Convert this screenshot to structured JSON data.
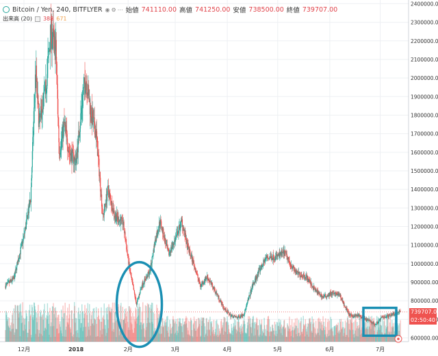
{
  "header": {
    "symbol": "Bitcoin / Yen, 240, BITFLYER",
    "open_label": "始値",
    "open_value": "741110.00",
    "high_label": "高値",
    "high_value": "741250.00",
    "low_label": "安値",
    "low_value": "738500.00",
    "close_label": "終値",
    "close_value": "739707.00"
  },
  "volume_legend": {
    "label": "出来高 (20)",
    "value1": "388",
    "value2": "671"
  },
  "price_tags": {
    "current": "739707.00",
    "countdown": "02:50:40"
  },
  "colors": {
    "up": "#26a69a",
    "down": "#ef5350",
    "annotation": "#1a8fb3",
    "current_price_line": "#ef5350",
    "grid": "#eef0f3"
  },
  "chart_data": {
    "type": "candlestick",
    "title": "Bitcoin / Yen, 240, BITFLYER",
    "y_unit": "JPY",
    "ylim": [
      580000,
      2420000
    ],
    "y_ticks": [
      "600000.00",
      "700000.00",
      "800000.00",
      "900000.00",
      "1000000.00",
      "1100000.00",
      "1200000.00",
      "1300000.00",
      "1400000.00",
      "1500000.00",
      "1600000.00",
      "1700000.00",
      "1800000.00",
      "1900000.00",
      "2000000.00",
      "2100000.00",
      "2200000.00",
      "2300000.00",
      "2400000.00"
    ],
    "x_ticks": [
      "12月",
      "2018",
      "2月",
      "3月",
      "4月",
      "5月",
      "6月",
      "7月"
    ],
    "x_tick_dates": [
      "2017-12-01",
      "2018-01-01",
      "2018-02-01",
      "2018-03-01",
      "2018-04-01",
      "2018-05-01",
      "2018-06-01",
      "2018-07-01"
    ],
    "x_range": [
      "2017-11-20",
      "2018-07-13"
    ],
    "grid": true,
    "price_path": [
      [
        "2017-11-20",
        880000
      ],
      [
        "2017-11-25",
        920000
      ],
      [
        "2017-12-01",
        1150000
      ],
      [
        "2017-12-05",
        1350000
      ],
      [
        "2017-12-08",
        2050000
      ],
      [
        "2017-12-10",
        1750000
      ],
      [
        "2017-12-14",
        1950000
      ],
      [
        "2017-12-17",
        2250000
      ],
      [
        "2017-12-20",
        2150000
      ],
      [
        "2017-12-22",
        1600000
      ],
      [
        "2017-12-25",
        1750000
      ],
      [
        "2017-12-28",
        1600000
      ],
      [
        "2018-01-01",
        1550000
      ],
      [
        "2018-01-05",
        1900000
      ],
      [
        "2018-01-07",
        2000000
      ],
      [
        "2018-01-10",
        1800000
      ],
      [
        "2018-01-13",
        1700000
      ],
      [
        "2018-01-17",
        1250000
      ],
      [
        "2018-01-20",
        1400000
      ],
      [
        "2018-01-24",
        1260000
      ],
      [
        "2018-01-29",
        1220000
      ],
      [
        "2018-02-02",
        960000
      ],
      [
        "2018-02-06",
        780000
      ],
      [
        "2018-02-09",
        880000
      ],
      [
        "2018-02-14",
        960000
      ],
      [
        "2018-02-17",
        1120000
      ],
      [
        "2018-02-20",
        1230000
      ],
      [
        "2018-02-25",
        1050000
      ],
      [
        "2018-03-01",
        1130000
      ],
      [
        "2018-03-05",
        1230000
      ],
      [
        "2018-03-08",
        1100000
      ],
      [
        "2018-03-12",
        1000000
      ],
      [
        "2018-03-16",
        880000
      ],
      [
        "2018-03-20",
        930000
      ],
      [
        "2018-03-25",
        850000
      ],
      [
        "2018-03-30",
        760000
      ],
      [
        "2018-04-03",
        720000
      ],
      [
        "2018-04-07",
        710000
      ],
      [
        "2018-04-11",
        730000
      ],
      [
        "2018-04-16",
        880000
      ],
      [
        "2018-04-20",
        960000
      ],
      [
        "2018-04-24",
        1030000
      ],
      [
        "2018-05-01",
        1040000
      ],
      [
        "2018-05-05",
        1060000
      ],
      [
        "2018-05-08",
        1010000
      ],
      [
        "2018-05-12",
        950000
      ],
      [
        "2018-05-18",
        930000
      ],
      [
        "2018-05-23",
        860000
      ],
      [
        "2018-05-28",
        820000
      ],
      [
        "2018-06-02",
        840000
      ],
      [
        "2018-06-07",
        830000
      ],
      [
        "2018-06-10",
        770000
      ],
      [
        "2018-06-13",
        720000
      ],
      [
        "2018-06-18",
        720000
      ],
      [
        "2018-06-22",
        700000
      ],
      [
        "2018-06-25",
        690000
      ],
      [
        "2018-06-28",
        670000
      ],
      [
        "2018-07-02",
        710000
      ],
      [
        "2018-07-06",
        720000
      ],
      [
        "2018-07-10",
        735000
      ],
      [
        "2018-07-13",
        739707
      ]
    ],
    "current_price": 739707,
    "annotations": [
      {
        "shape": "ellipse",
        "around": "2018-02-06 low"
      },
      {
        "shape": "rectangle",
        "around": "2018-06-22 to 2018-07-13 range"
      }
    ]
  }
}
